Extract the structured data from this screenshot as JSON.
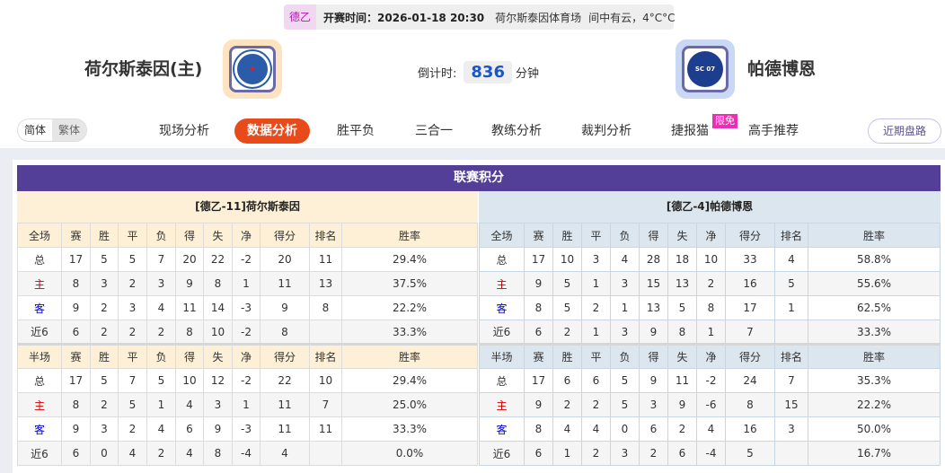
{
  "header": {
    "league": "德乙",
    "kickoff": "开赛时间：2026-01-18 20:30",
    "venue": "荷尔斯泰因体育场",
    "weather": "间中有云，4°C°C",
    "home": "荷尔斯泰因(主)",
    "away": "帕德博恩",
    "countdown_label": "倒计时:",
    "countdown_value": "836",
    "countdown_unit": "分钟"
  },
  "nav": {
    "lang": [
      "简体",
      "繁体"
    ],
    "items": [
      "现场分析",
      "数据分析",
      "胜平负",
      "三合一",
      "教练分析",
      "裁判分析",
      "捷报猫",
      "高手推荐"
    ],
    "active": "数据分析",
    "badge": "限免",
    "recent": "近期盘路"
  },
  "colors": {
    "accent": "#e84a1a",
    "title_bg": "#533f98",
    "home_color": "#d00000",
    "away_color": "#0000d0"
  },
  "standings": {
    "title": "联赛积分",
    "home_title": "[德乙-11]荷尔斯泰因",
    "away_title": "[德乙-4]帕德博恩",
    "full_header": [
      "全场",
      "赛",
      "胜",
      "平",
      "负",
      "得",
      "失",
      "净",
      "得分",
      "排名",
      "胜率"
    ],
    "half_header": [
      "半场",
      "赛",
      "胜",
      "平",
      "负",
      "得",
      "失",
      "净",
      "得分",
      "排名",
      "胜率"
    ],
    "home_full": [
      [
        "总",
        "17",
        "5",
        "5",
        "7",
        "20",
        "22",
        "-2",
        "20",
        "11",
        "29.4%"
      ],
      [
        "主",
        "8",
        "3",
        "2",
        "3",
        "9",
        "8",
        "1",
        "11",
        "13",
        "37.5%"
      ],
      [
        "客",
        "9",
        "2",
        "3",
        "4",
        "11",
        "14",
        "-3",
        "9",
        "8",
        "22.2%"
      ],
      [
        "近6",
        "6",
        "2",
        "2",
        "2",
        "8",
        "10",
        "-2",
        "8",
        "",
        "33.3%"
      ]
    ],
    "home_half": [
      [
        "总",
        "17",
        "5",
        "7",
        "5",
        "10",
        "12",
        "-2",
        "22",
        "10",
        "29.4%"
      ],
      [
        "主",
        "8",
        "2",
        "5",
        "1",
        "4",
        "3",
        "1",
        "11",
        "7",
        "25.0%"
      ],
      [
        "客",
        "9",
        "3",
        "2",
        "4",
        "6",
        "9",
        "-3",
        "11",
        "11",
        "33.3%"
      ],
      [
        "近6",
        "6",
        "0",
        "4",
        "2",
        "4",
        "8",
        "-4",
        "4",
        "",
        "0.0%"
      ]
    ],
    "away_full": [
      [
        "总",
        "17",
        "10",
        "3",
        "4",
        "28",
        "18",
        "10",
        "33",
        "4",
        "58.8%"
      ],
      [
        "主",
        "9",
        "5",
        "1",
        "3",
        "15",
        "13",
        "2",
        "16",
        "5",
        "55.6%"
      ],
      [
        "客",
        "8",
        "5",
        "2",
        "1",
        "13",
        "5",
        "8",
        "17",
        "1",
        "62.5%"
      ],
      [
        "近6",
        "6",
        "2",
        "1",
        "3",
        "9",
        "8",
        "1",
        "7",
        "",
        "33.3%"
      ]
    ],
    "away_half": [
      [
        "总",
        "17",
        "6",
        "6",
        "5",
        "9",
        "11",
        "-2",
        "24",
        "7",
        "35.3%"
      ],
      [
        "主",
        "9",
        "2",
        "2",
        "5",
        "3",
        "9",
        "-6",
        "8",
        "15",
        "22.2%"
      ],
      [
        "客",
        "8",
        "4",
        "4",
        "0",
        "6",
        "2",
        "4",
        "16",
        "3",
        "50.0%"
      ],
      [
        "近6",
        "6",
        "1",
        "2",
        "3",
        "2",
        "6",
        "-4",
        "5",
        "",
        "16.7%"
      ]
    ]
  }
}
